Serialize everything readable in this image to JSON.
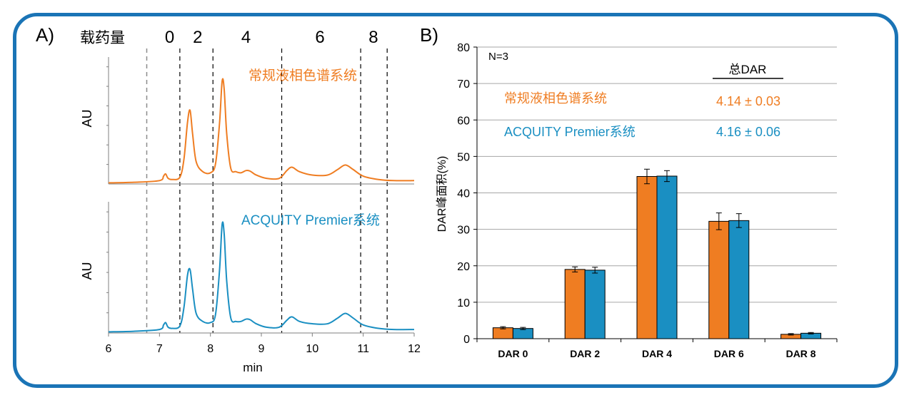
{
  "colors": {
    "frame": "#1a74b6",
    "conventional": "#ef7d22",
    "premier": "#1a8fc2",
    "grid": "#a6a6a6",
    "axis": "#7f7f7f"
  },
  "panel_a": {
    "label": "A)",
    "loading_label": "载药量",
    "dar_markers": [
      {
        "text": "0",
        "at": 7.2
      },
      {
        "text": "2",
        "at": 7.75
      },
      {
        "text": "4",
        "at": 8.7
      },
      {
        "text": "6",
        "at": 10.15
      },
      {
        "text": "8",
        "at": 11.2
      }
    ],
    "gray_dashed_lines": [
      6.75
    ],
    "dashed_lines": [
      7.4,
      8.05,
      9.4,
      10.95,
      11.47
    ],
    "top_ylabel": "AU",
    "bottom_ylabel": "AU",
    "top_trace_label": "常规液相色谱系统",
    "bottom_trace_label": "ACQUITY Premier系统",
    "xlabel": "min",
    "xticks": [
      "6",
      "7",
      "8",
      "9",
      "10",
      "11",
      "12"
    ]
  },
  "panel_b": {
    "label": "B)",
    "n_label": "N=3",
    "total_dar_header": "总DAR",
    "legend": [
      {
        "name": "常规液相色谱系统",
        "total": "4.14 ± 0.03",
        "color": "#ef7d22"
      },
      {
        "name": "ACQUITY Premier系统",
        "total": "4.16 ± 0.06",
        "color": "#1a8fc2"
      }
    ]
  },
  "chart_data": [
    {
      "type": "line",
      "title": "",
      "xlabel": "min",
      "ylabel": "AU",
      "xlim": [
        6,
        12
      ],
      "ylim": [
        0,
        1
      ],
      "series": [
        {
          "name": "常规液相色谱系统",
          "x": [
            6.0,
            6.5,
            7.0,
            7.08,
            7.12,
            7.17,
            7.25,
            7.4,
            7.48,
            7.55,
            7.6,
            7.65,
            7.72,
            7.85,
            8.0,
            8.1,
            8.18,
            8.23,
            8.27,
            8.32,
            8.4,
            8.5,
            8.6,
            8.7,
            8.78,
            8.9,
            9.1,
            9.35,
            9.5,
            9.6,
            9.75,
            10.0,
            10.3,
            10.5,
            10.65,
            10.8,
            11.0,
            11.3,
            11.6,
            12.0
          ],
          "y": [
            0.01,
            0.015,
            0.03,
            0.07,
            0.09,
            0.05,
            0.04,
            0.06,
            0.22,
            0.55,
            0.66,
            0.45,
            0.2,
            0.11,
            0.1,
            0.18,
            0.55,
            0.92,
            0.85,
            0.45,
            0.14,
            0.11,
            0.1,
            0.12,
            0.115,
            0.08,
            0.05,
            0.05,
            0.12,
            0.15,
            0.11,
            0.08,
            0.08,
            0.13,
            0.17,
            0.13,
            0.07,
            0.04,
            0.03,
            0.03
          ]
        },
        {
          "name": "ACQUITY Premier系统",
          "x": [
            6.0,
            6.5,
            7.0,
            7.08,
            7.12,
            7.17,
            7.25,
            7.4,
            7.48,
            7.55,
            7.6,
            7.65,
            7.72,
            7.85,
            8.0,
            8.1,
            8.18,
            8.23,
            8.27,
            8.32,
            8.4,
            8.5,
            8.6,
            8.7,
            8.78,
            8.9,
            9.1,
            9.35,
            9.5,
            9.6,
            9.75,
            10.0,
            10.3,
            10.5,
            10.65,
            10.8,
            11.0,
            11.3,
            11.6,
            12.0
          ],
          "y": [
            0.01,
            0.015,
            0.03,
            0.07,
            0.09,
            0.05,
            0.04,
            0.06,
            0.22,
            0.5,
            0.55,
            0.38,
            0.17,
            0.1,
            0.09,
            0.16,
            0.55,
            0.94,
            0.86,
            0.45,
            0.13,
            0.1,
            0.1,
            0.12,
            0.115,
            0.08,
            0.05,
            0.05,
            0.11,
            0.14,
            0.1,
            0.08,
            0.08,
            0.13,
            0.17,
            0.13,
            0.07,
            0.04,
            0.03,
            0.03
          ]
        }
      ]
    },
    {
      "type": "bar",
      "title": "",
      "xlabel": "",
      "ylabel": "DAR峰面积(%)",
      "ylim": [
        0,
        80
      ],
      "yticks": [
        0,
        10,
        20,
        30,
        40,
        50,
        60,
        70,
        80
      ],
      "grid": true,
      "categories": [
        "DAR 0",
        "DAR 2",
        "DAR 4",
        "DAR 6",
        "DAR 8"
      ],
      "series": [
        {
          "name": "常规液相色谱系统",
          "values": [
            3.0,
            19.0,
            44.5,
            32.2,
            1.2
          ],
          "errors": [
            0.3,
            0.7,
            2.0,
            2.3,
            0.2
          ]
        },
        {
          "name": "ACQUITY Premier系统",
          "values": [
            2.8,
            18.8,
            44.6,
            32.4,
            1.5
          ],
          "errors": [
            0.3,
            0.8,
            1.5,
            1.9,
            0.2
          ]
        }
      ]
    }
  ]
}
